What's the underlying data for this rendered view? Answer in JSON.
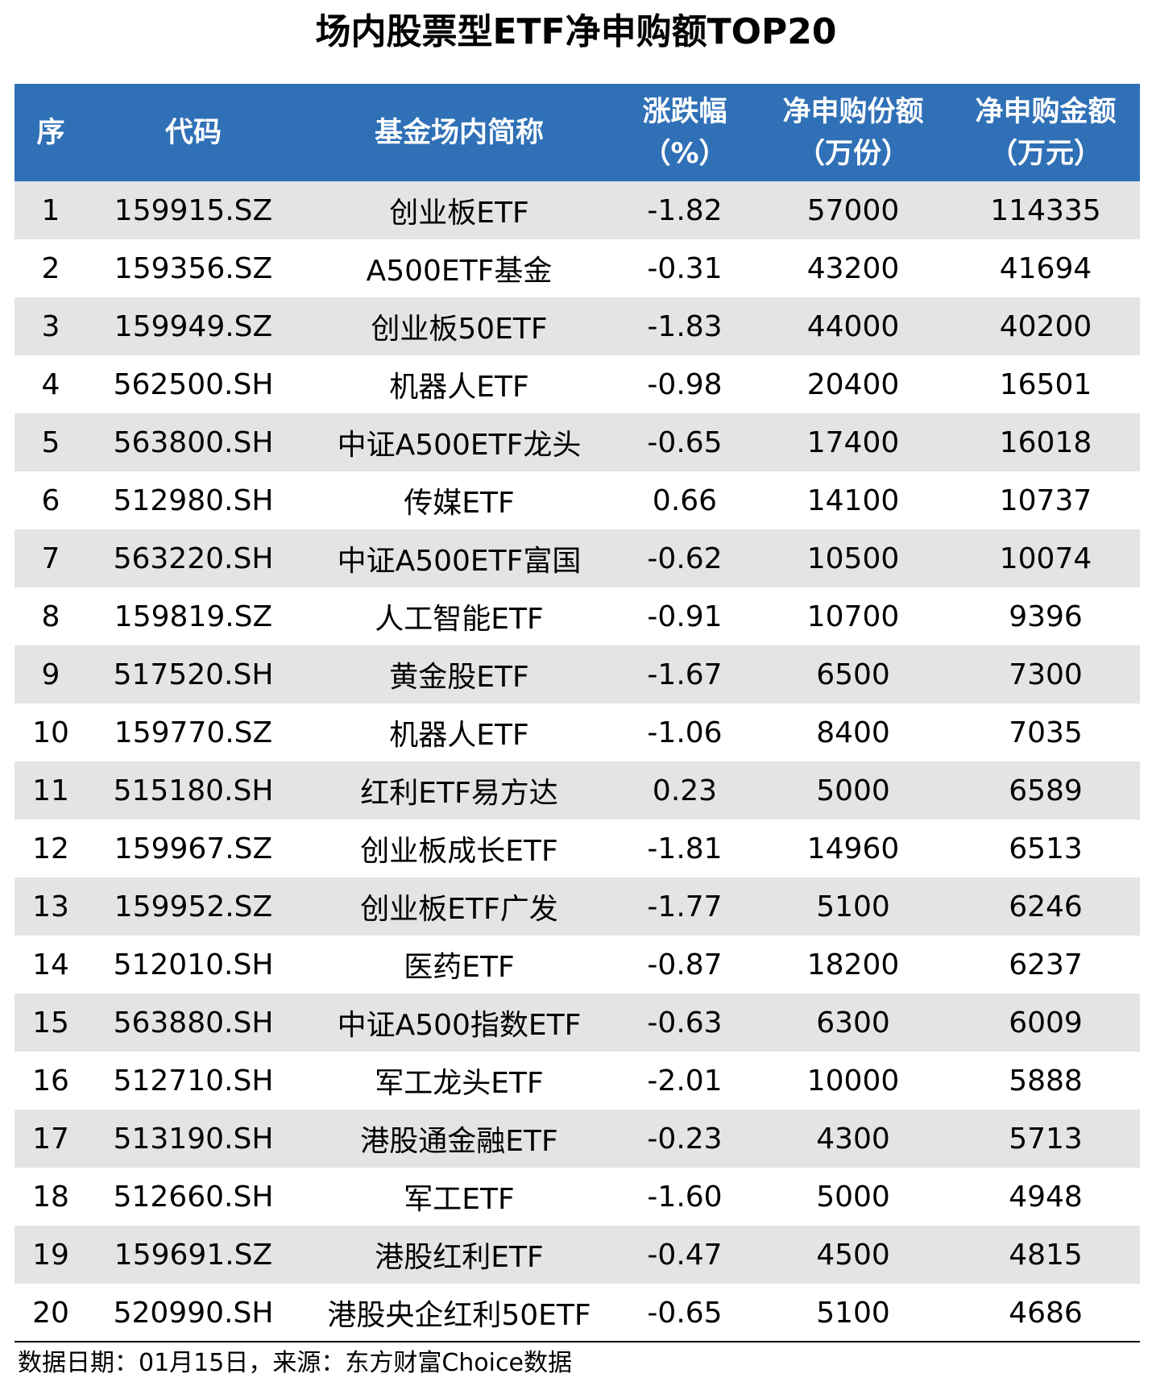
{
  "title": "场内股票型ETF净申购额TOP20",
  "table": {
    "header": [
      [
        "序"
      ],
      [
        "代码"
      ],
      [
        "基金场内简称"
      ],
      [
        "涨跌幅",
        "（%）"
      ],
      [
        "净申购份额",
        "（万份）"
      ],
      [
        "净申购金额",
        "（万元）"
      ]
    ],
    "rows": [
      [
        "1",
        "159915.SZ",
        "创业板ETF",
        "-1.82",
        "57000",
        "114335"
      ],
      [
        "2",
        "159356.SZ",
        "A500ETF基金",
        "-0.31",
        "43200",
        "41694"
      ],
      [
        "3",
        "159949.SZ",
        "创业板50ETF",
        "-1.83",
        "44000",
        "40200"
      ],
      [
        "4",
        "562500.SH",
        "机器人ETF",
        "-0.98",
        "20400",
        "16501"
      ],
      [
        "5",
        "563800.SH",
        "中证A500ETF龙头",
        "-0.65",
        "17400",
        "16018"
      ],
      [
        "6",
        "512980.SH",
        "传媒ETF",
        "0.66",
        "14100",
        "10737"
      ],
      [
        "7",
        "563220.SH",
        "中证A500ETF富国",
        "-0.62",
        "10500",
        "10074"
      ],
      [
        "8",
        "159819.SZ",
        "人工智能ETF",
        "-0.91",
        "10700",
        "9396"
      ],
      [
        "9",
        "517520.SH",
        "黄金股ETF",
        "-1.67",
        "6500",
        "7300"
      ],
      [
        "10",
        "159770.SZ",
        "机器人ETF",
        "-1.06",
        "8400",
        "7035"
      ],
      [
        "11",
        "515180.SH",
        "红利ETF易方达",
        "0.23",
        "5000",
        "6589"
      ],
      [
        "12",
        "159967.SZ",
        "创业板成长ETF",
        "-1.81",
        "14960",
        "6513"
      ],
      [
        "13",
        "159952.SZ",
        "创业板ETF广发",
        "-1.77",
        "5100",
        "6246"
      ],
      [
        "14",
        "512010.SH",
        "医药ETF",
        "-0.87",
        "18200",
        "6237"
      ],
      [
        "15",
        "563880.SH",
        "中证A500指数ETF",
        "-0.63",
        "6300",
        "6009"
      ],
      [
        "16",
        "512710.SH",
        "军工龙头ETF",
        "-2.01",
        "10000",
        "5888"
      ],
      [
        "17",
        "513190.SH",
        "港股通金融ETF",
        "-0.23",
        "4300",
        "5713"
      ],
      [
        "18",
        "512660.SH",
        "军工ETF",
        "-1.60",
        "5000",
        "4948"
      ],
      [
        "19",
        "159691.SZ",
        "港股红利ETF",
        "-0.47",
        "4500",
        "4815"
      ],
      [
        "20",
        "520990.SH",
        "港股央企红利50ETF",
        "-0.65",
        "5100",
        "4686"
      ]
    ]
  },
  "footer": "数据日期：01月15日，来源：东方财富Choice数据"
}
